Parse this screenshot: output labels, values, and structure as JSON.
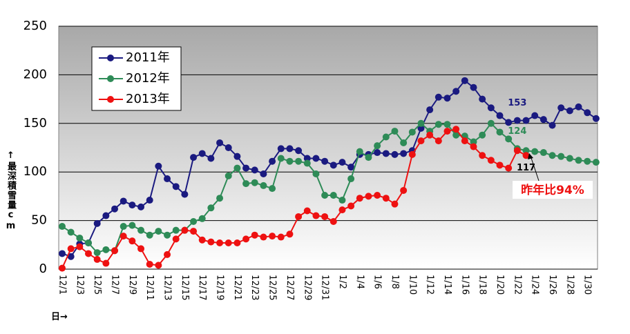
{
  "chart_data": {
    "type": "line",
    "y_label": "↑最深積雪量cm",
    "x_label": "日→",
    "annotation": "昨年比94%",
    "categories": [
      "12/1",
      null,
      "12/3",
      null,
      "12/5",
      null,
      "12/7",
      null,
      "12/9",
      null,
      "12/11",
      null,
      "12/13",
      null,
      "12/15",
      null,
      "12/17",
      null,
      "12/19",
      null,
      "12/21",
      null,
      "12/23",
      null,
      "12/25",
      null,
      "12/27",
      null,
      "12/29",
      null,
      "12/31",
      null,
      "1/2",
      null,
      "1/4",
      null,
      "1/6",
      null,
      "1/8",
      null,
      "1/10",
      null,
      "1/12",
      null,
      "1/14",
      null,
      "1/16",
      null,
      "1/18",
      null,
      "1/20",
      null,
      "1/22",
      null,
      "1/24",
      null,
      "1/26",
      null,
      "1/28",
      null,
      "1/30",
      null
    ],
    "ylim": [
      0,
      250
    ],
    "yticks": [
      0,
      50,
      100,
      150,
      200,
      250
    ],
    "grid": true,
    "legend": "top-left",
    "series": [
      {
        "name": "2011年",
        "color": "#1a1a80",
        "values": [
          16,
          13,
          26,
          27,
          47,
          55,
          62,
          70,
          66,
          64,
          71,
          106,
          93,
          85,
          77,
          115,
          119,
          114,
          130,
          125,
          116,
          104,
          102,
          98,
          111,
          124,
          124,
          122,
          114,
          114,
          111,
          107,
          110,
          105,
          118,
          118,
          120,
          119,
          118,
          119,
          122,
          145,
          164,
          177,
          176,
          183,
          194,
          187,
          175,
          166,
          158,
          151,
          153,
          153,
          158,
          154,
          148,
          166,
          163,
          167,
          161,
          155
        ],
        "value_labels": [
          null,
          null,
          null,
          null,
          null,
          null,
          null,
          null,
          null,
          null,
          null,
          null,
          null,
          null,
          null,
          null,
          null,
          null,
          null,
          null,
          null,
          null,
          null,
          null,
          null,
          null,
          null,
          null,
          null,
          null,
          null,
          null,
          null,
          null,
          null,
          null,
          null,
          null,
          null,
          null,
          null,
          null,
          null,
          null,
          null,
          null,
          null,
          null,
          null,
          null,
          null,
          null,
          "153",
          null,
          null,
          null,
          null,
          null,
          null,
          null,
          null,
          null
        ]
      },
      {
        "name": "2012年",
        "color": "#2e8b57",
        "values": [
          44,
          38,
          32,
          27,
          17,
          20,
          19,
          44,
          45,
          40,
          35,
          39,
          35,
          40,
          40,
          49,
          52,
          63,
          73,
          96,
          104,
          88,
          89,
          86,
          83,
          114,
          111,
          111,
          109,
          98,
          76,
          76,
          71,
          93,
          121,
          115,
          127,
          136,
          142,
          130,
          141,
          150,
          142,
          149,
          149,
          138,
          137,
          131,
          138,
          150,
          141,
          134,
          124,
          122,
          121,
          120,
          117,
          116,
          114,
          112,
          111,
          110
        ],
        "value_labels": [
          null,
          null,
          null,
          null,
          null,
          null,
          null,
          null,
          null,
          null,
          null,
          null,
          null,
          null,
          null,
          null,
          null,
          null,
          null,
          null,
          null,
          null,
          null,
          null,
          null,
          null,
          null,
          null,
          null,
          null,
          null,
          null,
          null,
          null,
          null,
          null,
          null,
          null,
          null,
          null,
          null,
          null,
          null,
          null,
          null,
          null,
          null,
          null,
          null,
          null,
          null,
          null,
          "124",
          null,
          null,
          null,
          null,
          null,
          null,
          null,
          null,
          null
        ]
      },
      {
        "name": "2013年",
        "color": "#ee1111",
        "values": [
          1,
          21,
          23,
          16,
          10,
          6,
          19,
          34,
          29,
          21,
          5,
          4,
          15,
          31,
          40,
          39,
          30,
          28,
          27,
          27,
          27,
          31,
          35,
          33,
          34,
          33,
          36,
          54,
          60,
          55,
          54,
          49,
          61,
          65,
          73,
          75,
          76,
          73,
          67,
          81,
          118,
          132,
          138,
          132,
          142,
          144,
          132,
          126,
          117,
          112,
          107,
          104,
          122,
          117,
          null,
          null,
          null,
          null,
          null,
          null,
          null,
          null
        ],
        "value_labels": [
          null,
          null,
          null,
          null,
          null,
          null,
          null,
          null,
          null,
          null,
          null,
          null,
          null,
          null,
          null,
          null,
          null,
          null,
          null,
          null,
          null,
          null,
          null,
          null,
          null,
          null,
          null,
          null,
          null,
          null,
          null,
          null,
          null,
          null,
          null,
          null,
          null,
          null,
          null,
          null,
          null,
          null,
          null,
          null,
          null,
          null,
          null,
          null,
          null,
          null,
          null,
          null,
          null,
          "117",
          null,
          null,
          null,
          null,
          null,
          null,
          null,
          null
        ]
      }
    ]
  }
}
